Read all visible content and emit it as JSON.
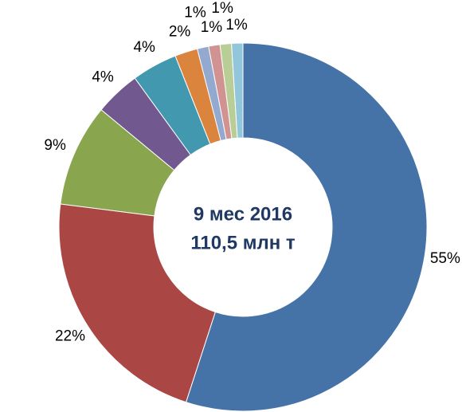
{
  "chart_data": {
    "type": "donut",
    "center_text": [
      "9 мес 2016",
      "110,5 млн т"
    ],
    "values": [
      55,
      22,
      9,
      4,
      4,
      2,
      1,
      1,
      1,
      1
    ],
    "value_labels": [
      "55%",
      "22%",
      "9%",
      "4%",
      "4%",
      "2%",
      "1%",
      "1%",
      "1%",
      "1%"
    ],
    "colors": [
      "#4572a7",
      "#aa4643",
      "#89a54e",
      "#71588f",
      "#4198af",
      "#db843d",
      "#93a9cf",
      "#d19392",
      "#b9cd96",
      "#92c6da"
    ]
  }
}
